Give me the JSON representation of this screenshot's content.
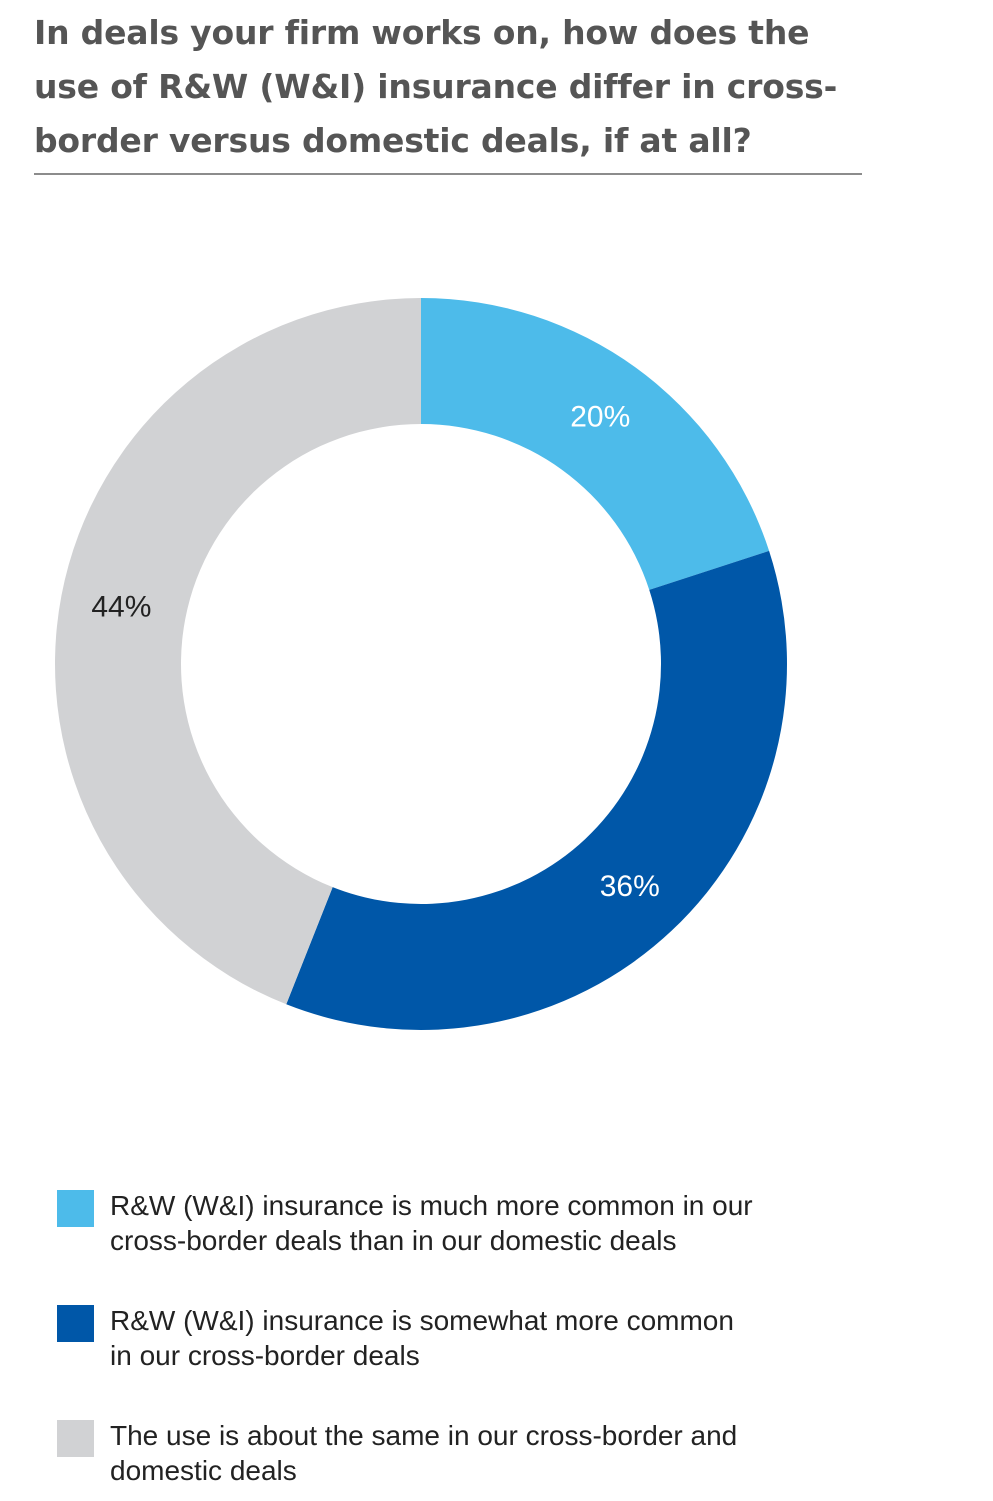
{
  "title": "In deals your firm works on, how does the use of R&W (W&I) insurance differ in cross-border versus domestic deals, if at all?",
  "colors": {
    "much_more_common": "#4dbbea",
    "somewhat_more_common": "#0057a8",
    "about_same": "#d1d2d4",
    "title_text": "#555555",
    "rule": "#8c8c8c"
  },
  "chart_data": {
    "type": "pie",
    "variant": "donut",
    "title": "In deals your firm works on, how does the use of R&W (W&I) insurance differ in cross-border versus domestic deals, if at all?",
    "slices": [
      {
        "label": "R&W (W&I) insurance is much more common in our cross-border deals than in our domestic deals",
        "value": 20,
        "display": "20%",
        "color": "#4dbbea",
        "label_color": "#ffffff"
      },
      {
        "label": "R&W (W&I) insurance is somewhat more common in our cross-border deals",
        "value": 36,
        "display": "36%",
        "color": "#0057a8",
        "label_color": "#ffffff"
      },
      {
        "label": "The use is about the same in our cross-border and domestic deals",
        "value": 44,
        "display": "44%",
        "color": "#d1d2d4",
        "label_color": "#222222"
      }
    ],
    "legend_position": "bottom",
    "start_angle": "12 o'clock",
    "direction": "clockwise"
  },
  "legend": [
    {
      "line1": "R&W (W&I) insurance is much more common in our",
      "line2": "cross-border deals than in our domestic deals"
    },
    {
      "line1": "R&W (W&I) insurance is somewhat more common",
      "line2": "in our cross-border deals"
    },
    {
      "line1": "The use is about the same in our cross-border and",
      "line2": "domestic deals"
    }
  ]
}
